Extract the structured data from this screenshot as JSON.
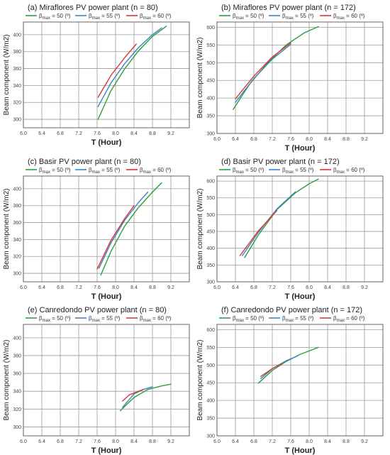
{
  "colors": {
    "grid": "#9a9a9a",
    "frame": "#555555"
  },
  "chart_data": [
    {
      "type": "line",
      "title": "(a) Miraflores PV power plant (n = 80)",
      "xlabel": "T (Hour)",
      "ylabel": "Beam component (W/m2)",
      "xlim": [
        6.0,
        9.6
      ],
      "ylim": [
        290,
        415
      ],
      "xticks": [
        "6.0",
        "6.4",
        "6.8",
        "7.2",
        "7.6",
        "8.0",
        "8.4",
        "8.8",
        "9.2"
      ],
      "xtick_values": [
        6.0,
        6.4,
        6.8,
        7.2,
        7.6,
        8.0,
        8.4,
        8.8,
        9.2
      ],
      "yticks": [
        "300",
        "320",
        "340",
        "360",
        "380",
        "400"
      ],
      "ytick_values": [
        300,
        320,
        340,
        360,
        380,
        400
      ],
      "legend_position": "top",
      "series": [
        {
          "name": "βmax = 50 (º)",
          "color": "#2e9e3e",
          "x": [
            7.62,
            7.9,
            8.2,
            8.5,
            8.8,
            9.1
          ],
          "y": [
            300,
            334,
            360,
            381,
            398,
            410
          ]
        },
        {
          "name": "βmax = 55 (º)",
          "color": "#3b84c4",
          "x": [
            7.62,
            7.9,
            8.2,
            8.5,
            8.8,
            9.0
          ],
          "y": [
            315,
            343,
            366,
            385,
            400,
            408
          ]
        },
        {
          "name": "βmax = 60 (º)",
          "color": "#d93636",
          "x": [
            7.62,
            7.9,
            8.2,
            8.45
          ],
          "y": [
            326,
            352,
            373,
            389
          ]
        }
      ]
    },
    {
      "type": "line",
      "title": "(b) Miraflores PV power plant (n = 172)",
      "xlabel": "T (Hour)",
      "ylabel": "Beam component (W/m2)",
      "xlim": [
        6.0,
        9.6
      ],
      "ylim": [
        300,
        615
      ],
      "xticks": [
        "6.0",
        "6.4",
        "6.8",
        "7.2",
        "7.6",
        "8.0",
        "8.4",
        "8.8",
        "9.2"
      ],
      "xtick_values": [
        6.0,
        6.4,
        6.8,
        7.2,
        7.6,
        8.0,
        8.4,
        8.8,
        9.2
      ],
      "yticks": [
        "300",
        "350",
        "400",
        "450",
        "500",
        "550",
        "600"
      ],
      "ytick_values": [
        300,
        350,
        400,
        450,
        500,
        550,
        600
      ],
      "legend_position": "top",
      "series": [
        {
          "name": "βmax = 50 (º)",
          "color": "#2e9e3e",
          "x": [
            6.35,
            6.7,
            7.1,
            7.5,
            7.9,
            8.2
          ],
          "y": [
            368,
            438,
            500,
            550,
            585,
            602
          ]
        },
        {
          "name": "βmax = 55 (º)",
          "color": "#3b84c4",
          "x": [
            6.4,
            6.8,
            7.2,
            7.6
          ],
          "y": [
            388,
            455,
            510,
            552
          ]
        },
        {
          "name": "βmax = 60 (º)",
          "color": "#d93636",
          "x": [
            6.4,
            6.8,
            7.2,
            7.6
          ],
          "y": [
            398,
            462,
            516,
            556
          ]
        }
      ]
    },
    {
      "type": "line",
      "title": "(c) Basir PV power plant (n = 80)",
      "xlabel": "T (Hour)",
      "ylabel": "Beam component (W/m2)",
      "xlim": [
        6.0,
        9.6
      ],
      "ylim": [
        290,
        415
      ],
      "xticks": [
        "6.0",
        "6.4",
        "6.8",
        "7.2",
        "7.6",
        "8.0",
        "8.4",
        "8.8",
        "9.2"
      ],
      "xtick_values": [
        6.0,
        6.4,
        6.8,
        7.2,
        7.6,
        8.0,
        8.4,
        8.8,
        9.2
      ],
      "yticks": [
        "300",
        "320",
        "340",
        "360",
        "380",
        "400"
      ],
      "ytick_values": [
        300,
        320,
        340,
        360,
        380,
        400
      ],
      "legend_position": "top",
      "series": [
        {
          "name": "βmax = 50 (º)",
          "color": "#2e9e3e",
          "x": [
            7.68,
            7.9,
            8.2,
            8.5,
            8.8,
            9.0
          ],
          "y": [
            298,
            326,
            356,
            378,
            396,
            407
          ]
        },
        {
          "name": "βmax = 55 (º)",
          "color": "#3b84c4",
          "x": [
            7.64,
            7.9,
            8.2,
            8.5,
            8.7
          ],
          "y": [
            306,
            336,
            363,
            384,
            396
          ]
        },
        {
          "name": "βmax = 60 (º)",
          "color": "#d93636",
          "x": [
            7.6,
            7.9,
            8.2,
            8.4
          ],
          "y": [
            305,
            339,
            365,
            380
          ]
        }
      ]
    },
    {
      "type": "line",
      "title": "(d) Basir PV power plant (n = 172)",
      "xlabel": "T (Hour)",
      "ylabel": "Beam component (W/m2)",
      "xlim": [
        6.0,
        9.6
      ],
      "ylim": [
        300,
        615
      ],
      "xticks": [
        "6.0",
        "6.4",
        "6.8",
        "7.2",
        "7.6",
        "8.0",
        "8.4",
        "8.8",
        "9.2"
      ],
      "xtick_values": [
        6.0,
        6.4,
        6.8,
        7.2,
        7.6,
        8.0,
        8.4,
        8.8,
        9.2
      ],
      "yticks": [
        "300",
        "350",
        "400",
        "450",
        "500",
        "550",
        "600"
      ],
      "ytick_values": [
        300,
        350,
        400,
        450,
        500,
        550,
        600
      ],
      "legend_position": "top",
      "series": [
        {
          "name": "βmax = 50 (º)",
          "color": "#2e9e3e",
          "x": [
            6.6,
            6.9,
            7.3,
            7.7,
            8.0,
            8.2
          ],
          "y": [
            372,
            440,
            515,
            565,
            592,
            606
          ]
        },
        {
          "name": "βmax = 55 (º)",
          "color": "#3b84c4",
          "x": [
            6.55,
            6.9,
            7.3,
            7.7
          ],
          "y": [
            378,
            448,
            517,
            568
          ]
        },
        {
          "name": "βmax = 60 (º)",
          "color": "#d93636",
          "x": [
            6.5,
            6.9,
            7.3
          ],
          "y": [
            378,
            452,
            512
          ]
        }
      ]
    },
    {
      "type": "line",
      "title": "(e) Canredondo PV power plant (n = 80)",
      "xlabel": "T (Hour)",
      "ylabel": "Beam component (W/m2)",
      "xlim": [
        6.0,
        9.6
      ],
      "ylim": [
        290,
        415
      ],
      "xticks": [
        "6.0",
        "6.4",
        "6.8",
        "7.2",
        "7.6",
        "8.0",
        "8.4",
        "8.8",
        "9.2"
      ],
      "xtick_values": [
        6.0,
        6.4,
        6.8,
        7.2,
        7.6,
        8.0,
        8.4,
        8.8,
        9.2
      ],
      "yticks": [
        "300",
        "320",
        "340",
        "360",
        "380",
        "400"
      ],
      "ytick_values": [
        300,
        320,
        340,
        360,
        380,
        400
      ],
      "legend_position": "top",
      "series": [
        {
          "name": "βmax = 50 (º)",
          "color": "#2e9e3e",
          "x": [
            8.1,
            8.4,
            8.7,
            9.0,
            9.2
          ],
          "y": [
            318,
            333,
            342,
            346,
            348
          ]
        },
        {
          "name": "βmax = 55 (º)",
          "color": "#3b84c4",
          "x": [
            8.15,
            8.4,
            8.6,
            8.8
          ],
          "y": [
            322,
            337,
            342,
            345
          ]
        },
        {
          "name": "βmax = 60 (º)",
          "color": "#d93636",
          "x": [
            8.15,
            8.3,
            8.5,
            8.6
          ],
          "y": [
            329,
            336,
            340,
            342
          ]
        }
      ]
    },
    {
      "type": "line",
      "title": "(f) Canredondo PV power plant (n = 172)",
      "xlabel": "T (Hour)",
      "ylabel": "Beam component (W/m2)",
      "xlim": [
        6.0,
        9.6
      ],
      "ylim": [
        300,
        615
      ],
      "xticks": [
        "6.0",
        "6.4",
        "6.8",
        "7.2",
        "7.6",
        "8.0",
        "8.4",
        "8.8",
        "9.2"
      ],
      "xtick_values": [
        6.0,
        6.4,
        6.8,
        7.2,
        7.6,
        8.0,
        8.4,
        8.8,
        9.2
      ],
      "yticks": [
        "300",
        "350",
        "400",
        "450",
        "500",
        "550",
        "600"
      ],
      "ytick_values": [
        300,
        350,
        400,
        450,
        500,
        550,
        600
      ],
      "legend_position": "top",
      "series": [
        {
          "name": "βmax = 50 (º)",
          "color": "#2e9e3e",
          "x": [
            6.9,
            7.2,
            7.5,
            7.8,
            8.2
          ],
          "y": [
            449,
            485,
            510,
            530,
            550
          ]
        },
        {
          "name": "βmax = 55 (º)",
          "color": "#3b84c4",
          "x": [
            6.95,
            7.2,
            7.5,
            7.75
          ],
          "y": [
            462,
            490,
            512,
            526
          ]
        },
        {
          "name": "βmax = 60 (º)",
          "color": "#d93636",
          "x": [
            6.95,
            7.2,
            7.4
          ],
          "y": [
            468,
            490,
            503
          ]
        }
      ]
    }
  ]
}
